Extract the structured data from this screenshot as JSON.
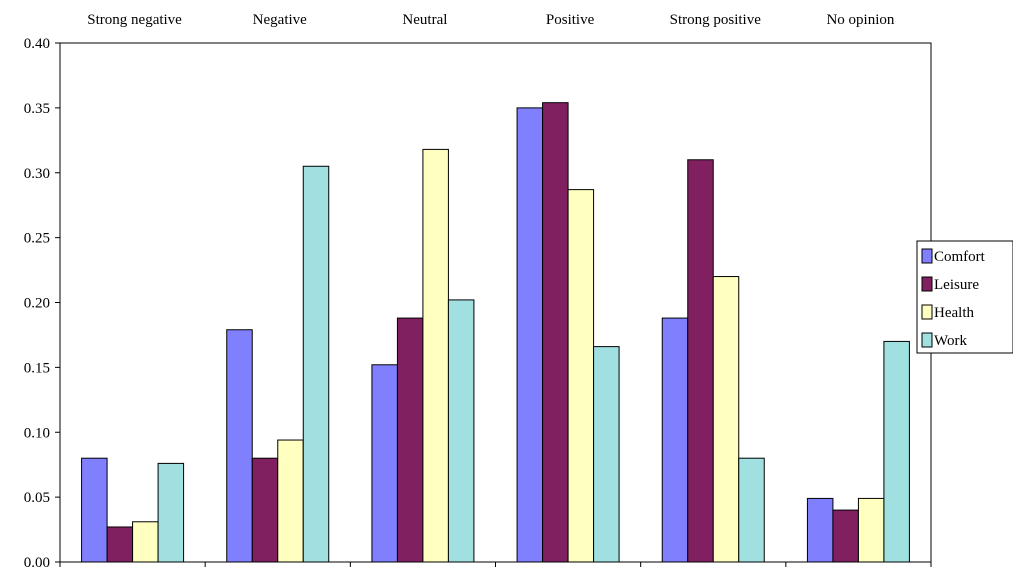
{
  "chart_data": {
    "type": "bar",
    "categories": [
      "Strong negative",
      "Negative",
      "Neutral",
      "Positive",
      "Strong positive",
      "No opinion"
    ],
    "series": [
      {
        "name": "Comfort",
        "color": "#8080FF",
        "values": [
          0.08,
          0.179,
          0.152,
          0.35,
          0.188,
          0.049
        ]
      },
      {
        "name": "Leisure",
        "color": "#802060",
        "values": [
          0.027,
          0.08,
          0.188,
          0.354,
          0.31,
          0.04
        ]
      },
      {
        "name": "Health",
        "color": "#FFFFC0",
        "values": [
          0.031,
          0.094,
          0.318,
          0.287,
          0.22,
          0.049
        ]
      },
      {
        "name": "Work",
        "color": "#A0E0E0",
        "values": [
          0.076,
          0.305,
          0.202,
          0.166,
          0.08,
          0.17
        ]
      }
    ],
    "y_ticks": [
      "0.00",
      "0.05",
      "0.10",
      "0.15",
      "0.20",
      "0.25",
      "0.30",
      "0.35",
      "0.40"
    ],
    "ylim": [
      0,
      0.4
    ],
    "category_labels_position": "top",
    "legend_position": "right",
    "grid": false
  }
}
